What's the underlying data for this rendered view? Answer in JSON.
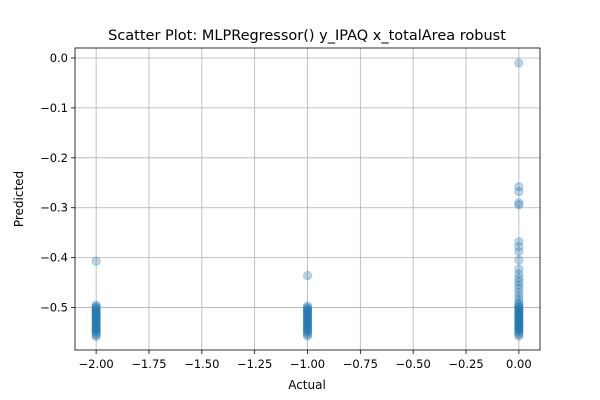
{
  "chart_data": {
    "type": "scatter",
    "title": "Scatter Plot: MLPRegressor() y_IPAQ x_totalArea robust",
    "xlabel": "Actual",
    "ylabel": "Predicted",
    "xlim": [
      -2.1,
      0.1
    ],
    "ylim": [
      -0.585,
      0.02
    ],
    "x_ticks": [
      -2.0,
      -1.75,
      -1.5,
      -1.25,
      -1.0,
      -0.75,
      -0.5,
      -0.25,
      0.0
    ],
    "x_tick_labels": [
      "−2.00",
      "−1.75",
      "−1.50",
      "−1.25",
      "−1.00",
      "−0.75",
      "−0.50",
      "−0.25",
      "0.00"
    ],
    "y_ticks": [
      0.0,
      -0.1,
      -0.2,
      -0.3,
      -0.4,
      -0.5
    ],
    "y_tick_labels": [
      "0.0",
      "−0.1",
      "−0.2",
      "−0.3",
      "−0.4",
      "−0.5"
    ],
    "grid": true,
    "marker_color": "#1f77b4",
    "marker_alpha": 0.3,
    "series": [
      {
        "points": [
          [
            -2.0,
            -0.407
          ],
          [
            -2.0,
            -0.495
          ],
          [
            -2.0,
            -0.498
          ],
          [
            -2.0,
            -0.5
          ],
          [
            -2.0,
            -0.502
          ],
          [
            -2.0,
            -0.505
          ],
          [
            -2.0,
            -0.507
          ],
          [
            -2.0,
            -0.509
          ],
          [
            -2.0,
            -0.511
          ],
          [
            -2.0,
            -0.513
          ],
          [
            -2.0,
            -0.515
          ],
          [
            -2.0,
            -0.517
          ],
          [
            -2.0,
            -0.519
          ],
          [
            -2.0,
            -0.521
          ],
          [
            -2.0,
            -0.523
          ],
          [
            -2.0,
            -0.525
          ],
          [
            -2.0,
            -0.527
          ],
          [
            -2.0,
            -0.529
          ],
          [
            -2.0,
            -0.531
          ],
          [
            -2.0,
            -0.533
          ],
          [
            -2.0,
            -0.535
          ],
          [
            -2.0,
            -0.537
          ],
          [
            -2.0,
            -0.539
          ],
          [
            -2.0,
            -0.541
          ],
          [
            -2.0,
            -0.543
          ],
          [
            -2.0,
            -0.545
          ],
          [
            -2.0,
            -0.547
          ],
          [
            -2.0,
            -0.549
          ],
          [
            -2.0,
            -0.552
          ],
          [
            -2.0,
            -0.555
          ],
          [
            -2.0,
            -0.558
          ],
          [
            -1.0,
            -0.436
          ],
          [
            -1.0,
            -0.497
          ],
          [
            -1.0,
            -0.5
          ],
          [
            -1.0,
            -0.502
          ],
          [
            -1.0,
            -0.504
          ],
          [
            -1.0,
            -0.506
          ],
          [
            -1.0,
            -0.508
          ],
          [
            -1.0,
            -0.51
          ],
          [
            -1.0,
            -0.512
          ],
          [
            -1.0,
            -0.514
          ],
          [
            -1.0,
            -0.516
          ],
          [
            -1.0,
            -0.518
          ],
          [
            -1.0,
            -0.52
          ],
          [
            -1.0,
            -0.522
          ],
          [
            -1.0,
            -0.524
          ],
          [
            -1.0,
            -0.526
          ],
          [
            -1.0,
            -0.528
          ],
          [
            -1.0,
            -0.53
          ],
          [
            -1.0,
            -0.532
          ],
          [
            -1.0,
            -0.534
          ],
          [
            -1.0,
            -0.536
          ],
          [
            -1.0,
            -0.538
          ],
          [
            -1.0,
            -0.54
          ],
          [
            -1.0,
            -0.542
          ],
          [
            -1.0,
            -0.544
          ],
          [
            -1.0,
            -0.546
          ],
          [
            -1.0,
            -0.548
          ],
          [
            -1.0,
            -0.551
          ],
          [
            -1.0,
            -0.554
          ],
          [
            -1.0,
            -0.557
          ],
          [
            0.0,
            -0.01
          ],
          [
            0.0,
            -0.258
          ],
          [
            0.0,
            -0.268
          ],
          [
            0.0,
            -0.29
          ],
          [
            0.0,
            -0.294
          ],
          [
            0.0,
            -0.368
          ],
          [
            0.0,
            -0.378
          ],
          [
            0.0,
            -0.388
          ],
          [
            0.0,
            -0.405
          ],
          [
            0.0,
            -0.423
          ],
          [
            0.0,
            -0.433
          ],
          [
            0.0,
            -0.441
          ],
          [
            0.0,
            -0.448
          ],
          [
            0.0,
            -0.455
          ],
          [
            0.0,
            -0.462
          ],
          [
            0.0,
            -0.47
          ],
          [
            0.0,
            -0.477
          ],
          [
            0.0,
            -0.484
          ],
          [
            0.0,
            -0.49
          ],
          [
            0.0,
            -0.494
          ],
          [
            0.0,
            -0.497
          ],
          [
            0.0,
            -0.5
          ],
          [
            0.0,
            -0.502
          ],
          [
            0.0,
            -0.504
          ],
          [
            0.0,
            -0.506
          ],
          [
            0.0,
            -0.508
          ],
          [
            0.0,
            -0.51
          ],
          [
            0.0,
            -0.512
          ],
          [
            0.0,
            -0.514
          ],
          [
            0.0,
            -0.516
          ],
          [
            0.0,
            -0.518
          ],
          [
            0.0,
            -0.52
          ],
          [
            0.0,
            -0.522
          ],
          [
            0.0,
            -0.524
          ],
          [
            0.0,
            -0.526
          ],
          [
            0.0,
            -0.528
          ],
          [
            0.0,
            -0.53
          ],
          [
            0.0,
            -0.532
          ],
          [
            0.0,
            -0.534
          ],
          [
            0.0,
            -0.536
          ],
          [
            0.0,
            -0.538
          ],
          [
            0.0,
            -0.54
          ],
          [
            0.0,
            -0.542
          ],
          [
            0.0,
            -0.544
          ],
          [
            0.0,
            -0.546
          ],
          [
            0.0,
            -0.548
          ],
          [
            0.0,
            -0.551
          ],
          [
            0.0,
            -0.554
          ],
          [
            0.0,
            -0.557
          ]
        ]
      }
    ]
  }
}
